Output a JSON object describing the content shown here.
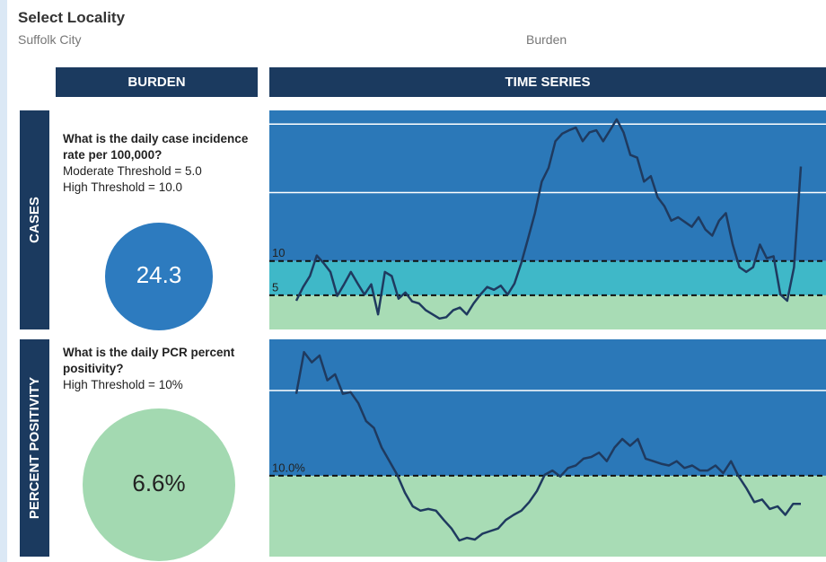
{
  "header": {
    "title": "Select Locality",
    "locality": "Suffolk City",
    "view": "Burden"
  },
  "columns": [
    "BURDEN",
    "TIME SERIES"
  ],
  "rows": [
    {
      "label": "CASES",
      "question": "What is the daily case incidence rate per 100,000?",
      "thresholds": [
        "Moderate Threshold = 5.0",
        "High Threshold = 10.0"
      ],
      "value": "24.3",
      "circle_color": "#2d7bbf"
    },
    {
      "label": "PERCENT POSITIVITY",
      "question": "What is the daily PCR percent positivity?",
      "thresholds": [
        "High Threshold = 10%"
      ],
      "value": "6.6%",
      "circle_color": "#a3d9b1"
    }
  ],
  "chart_data": [
    {
      "type": "line",
      "color": "#1f3a5f",
      "values": [
        4.2,
        6.2,
        7.8,
        10.8,
        9.7,
        8.4,
        4.9,
        6.6,
        8.4,
        6.7,
        5.1,
        6.6,
        2.2,
        8.4,
        7.8,
        4.5,
        5.4,
        4.1,
        3.8,
        2.8,
        2.2,
        1.6,
        1.8,
        2.8,
        3.2,
        2.2,
        3.8,
        5.1,
        6.2,
        5.8,
        6.4,
        5.1,
        6.7,
        9.7,
        13.3,
        17,
        21.6,
        23.6,
        27.5,
        28.6,
        29.1,
        29.5,
        27.5,
        28.8,
        29.1,
        27.5,
        29.1,
        30.7,
        28.8,
        25.5,
        25.1,
        21.6,
        22.4,
        19.3,
        18,
        15.9,
        16.4,
        15.7,
        15,
        16.4,
        14.6,
        13.7,
        15.9,
        17,
        12.4,
        9.1,
        8.4,
        9.1,
        12.4,
        10.4,
        10.7,
        5.1,
        4.2,
        9.1,
        23.8
      ],
      "ylim": [
        0,
        32
      ],
      "yticks": [
        5,
        10
      ],
      "gridlines": [
        20,
        30
      ],
      "band_colors": [
        "#a8dcb5",
        "#3fb8c8",
        "#2b78b8"
      ]
    },
    {
      "type": "line",
      "color": "#1f3a5f",
      "values": [
        19.6,
        24.5,
        23.3,
        24.1,
        21.2,
        21.9,
        19.6,
        19.8,
        18.5,
        16.4,
        15.6,
        13.3,
        11.7,
        10.1,
        8,
        6.4,
        5.9,
        6.1,
        5.9,
        4.8,
        3.8,
        2.4,
        2.7,
        2.5,
        3.2,
        3.5,
        3.8,
        4.8,
        5.4,
        5.9,
        6.9,
        8.2,
        10.1,
        10.6,
        9.9,
        10.9,
        11.2,
        12,
        12.2,
        12.7,
        11.7,
        13.3,
        14.3,
        13.5,
        14.3,
        12,
        11.7,
        11.4,
        11.2,
        11.7,
        10.9,
        11.2,
        10.6,
        10.6,
        11.2,
        10.3,
        11.7,
        9.9,
        8.5,
        6.9,
        7.2,
        6.1,
        6.4,
        5.4,
        6.7,
        6.7
      ],
      "ylim": [
        0.5,
        26
      ],
      "yticks": [
        {
          "value": 10,
          "label": "10.0%"
        }
      ],
      "gridlines": [
        20
      ],
      "band_colors": [
        "#a8dcb5",
        "#2b78b8"
      ]
    }
  ]
}
